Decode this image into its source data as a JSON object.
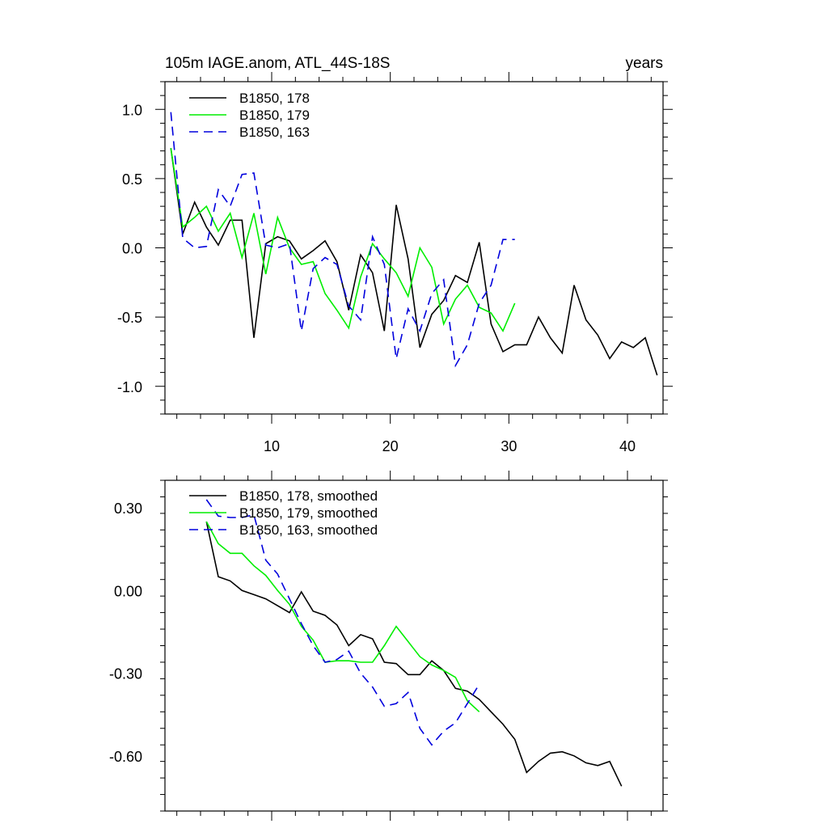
{
  "chart_data": [
    {
      "type": "line",
      "title": "105m IAGE.anom, ATL_44S-18S",
      "title_right": "years",
      "xlabel": "",
      "ylabel": "",
      "xlim": [
        1,
        43
      ],
      "ylim": [
        -1.2,
        1.2
      ],
      "xticks": [
        10,
        20,
        30,
        40
      ],
      "yticks": [
        1.0,
        0.5,
        0.0,
        -0.5,
        -1.0
      ],
      "ytick_labels": [
        "1.0",
        "0.5",
        "0.0",
        "-0.5",
        "-1.0"
      ],
      "xtick_labels": [
        "10",
        "20",
        "30",
        "40"
      ],
      "legend_position": "top-left",
      "series": [
        {
          "name": "B1850, 178",
          "color": "#000000",
          "dash": "solid",
          "x": [
            1.5,
            2.5,
            3.5,
            4.5,
            5.5,
            6.5,
            7.5,
            8.5,
            9.5,
            10.5,
            11.5,
            12.5,
            13.5,
            14.5,
            15.5,
            16.5,
            17.5,
            18.5,
            19.5,
            20.5,
            21.5,
            22.5,
            23.5,
            24.5,
            25.5,
            26.5,
            27.5,
            28.5,
            29.5,
            30.5,
            31.5,
            32.5,
            33.5,
            34.5,
            35.5,
            36.5,
            37.5,
            38.5,
            39.5,
            40.5,
            41.5,
            42.5
          ],
          "values": [
            0.72,
            0.1,
            0.33,
            0.15,
            0.02,
            0.2,
            0.2,
            -0.65,
            0.03,
            0.08,
            0.05,
            -0.08,
            -0.02,
            0.05,
            -0.1,
            -0.45,
            -0.05,
            -0.18,
            -0.6,
            0.31,
            -0.08,
            -0.72,
            -0.48,
            -0.38,
            -0.2,
            -0.25,
            0.04,
            -0.55,
            -0.75,
            -0.7,
            -0.7,
            -0.5,
            -0.65,
            -0.76,
            -0.27,
            -0.52,
            -0.63,
            -0.8,
            -0.68,
            -0.72,
            -0.65,
            -0.92
          ]
        },
        {
          "name": "B1850, 179",
          "color": "#00ee00",
          "dash": "solid",
          "x": [
            1.5,
            2.5,
            3.5,
            4.5,
            5.5,
            6.5,
            7.5,
            8.5,
            9.5,
            10.5,
            11.5,
            12.5,
            13.5,
            14.5,
            15.5,
            16.5,
            17.5,
            18.5,
            19.5,
            20.5,
            21.5,
            22.5,
            23.5,
            24.5,
            25.5,
            26.5,
            27.5,
            28.5,
            29.5,
            30.5
          ],
          "values": [
            0.72,
            0.15,
            0.22,
            0.3,
            0.12,
            0.25,
            -0.07,
            0.25,
            -0.19,
            0.22,
            0.0,
            -0.12,
            -0.1,
            -0.33,
            -0.45,
            -0.58,
            -0.21,
            0.03,
            -0.08,
            -0.18,
            -0.35,
            0.0,
            -0.14,
            -0.55,
            -0.37,
            -0.27,
            -0.43,
            -0.47,
            -0.6,
            -0.4
          ]
        },
        {
          "name": "B1850, 163",
          "color": "#0000dd",
          "dash": "dashed",
          "x": [
            1.5,
            2.5,
            3.5,
            4.5,
            5.5,
            6.5,
            7.5,
            8.5,
            9.5,
            10.5,
            11.5,
            12.5,
            13.5,
            14.5,
            15.5,
            16.5,
            17.5,
            18.5,
            19.5,
            20.5,
            21.5,
            22.5,
            23.5,
            24.5,
            25.5,
            26.5,
            27.5,
            28.5,
            29.5,
            30.5
          ],
          "values": [
            0.98,
            0.07,
            0.0,
            0.01,
            0.42,
            0.3,
            0.53,
            0.54,
            0.02,
            0.0,
            0.03,
            -0.6,
            -0.15,
            -0.07,
            -0.12,
            -0.42,
            -0.52,
            0.08,
            -0.12,
            -0.8,
            -0.44,
            -0.6,
            -0.33,
            -0.23,
            -0.85,
            -0.7,
            -0.4,
            -0.27,
            0.06,
            0.06
          ]
        }
      ]
    },
    {
      "type": "line",
      "title": "",
      "xlabel": "",
      "ylabel": "",
      "xlim": [
        1,
        43
      ],
      "ylim": [
        -0.8,
        0.4
      ],
      "xticks": [
        10,
        20,
        30,
        40
      ],
      "yticks": [
        0.3,
        0.0,
        -0.3,
        -0.6
      ],
      "ytick_labels": [
        "0.30",
        "0.00",
        "-0.30",
        "-0.60"
      ],
      "legend_position": "top-left",
      "series": [
        {
          "name": "B1850, 178, smoothed",
          "color": "#000000",
          "dash": "solid",
          "x": [
            4.5,
            5.5,
            6.5,
            7.5,
            8.5,
            9.5,
            10.5,
            11.5,
            12.5,
            13.5,
            14.5,
            15.5,
            16.5,
            17.5,
            18.5,
            19.5,
            20.5,
            21.5,
            22.5,
            23.5,
            24.5,
            25.5,
            26.5,
            27.5,
            28.5,
            29.5,
            30.5,
            31.5,
            32.5,
            33.5,
            34.5,
            35.5,
            36.5,
            37.5,
            38.5,
            39.5
          ],
          "values": [
            0.25,
            0.05,
            0.035,
            0.0,
            -0.015,
            -0.03,
            -0.055,
            -0.08,
            -0.005,
            -0.075,
            -0.09,
            -0.125,
            -0.2,
            -0.16,
            -0.175,
            -0.26,
            -0.265,
            -0.305,
            -0.305,
            -0.255,
            -0.29,
            -0.355,
            -0.365,
            -0.395,
            -0.44,
            -0.485,
            -0.54,
            -0.66,
            -0.62,
            -0.59,
            -0.585,
            -0.6,
            -0.625,
            -0.635,
            -0.62,
            -0.71
          ]
        },
        {
          "name": "B1850, 179, smoothed",
          "color": "#00ee00",
          "dash": "solid",
          "x": [
            4.5,
            5.5,
            6.5,
            7.5,
            8.5,
            9.5,
            10.5,
            11.5,
            12.5,
            13.5,
            14.5,
            15.5,
            16.5,
            17.5,
            18.5,
            19.5,
            20.5,
            21.5,
            22.5,
            23.5,
            24.5,
            25.5,
            26.5,
            27.5
          ],
          "values": [
            0.25,
            0.17,
            0.135,
            0.135,
            0.09,
            0.055,
            0.0,
            -0.05,
            -0.13,
            -0.18,
            -0.26,
            -0.255,
            -0.255,
            -0.26,
            -0.26,
            -0.2,
            -0.13,
            -0.185,
            -0.24,
            -0.27,
            -0.29,
            -0.315,
            -0.4,
            -0.44
          ]
        },
        {
          "name": "B1850, 163, smoothed",
          "color": "#0000dd",
          "dash": "dashed",
          "x": [
            4.5,
            5.5,
            6.5,
            7.5,
            8.5,
            9.5,
            10.5,
            11.5,
            12.5,
            13.5,
            14.5,
            15.5,
            16.5,
            17.5,
            18.5,
            19.5,
            20.5,
            21.5,
            22.5,
            23.5,
            24.5,
            25.5,
            26.5,
            27.5
          ],
          "values": [
            0.33,
            0.27,
            0.265,
            0.265,
            0.275,
            0.11,
            0.06,
            -0.03,
            -0.12,
            -0.2,
            -0.26,
            -0.25,
            -0.22,
            -0.3,
            -0.35,
            -0.42,
            -0.41,
            -0.37,
            -0.5,
            -0.56,
            -0.51,
            -0.48,
            -0.41,
            -0.34
          ]
        }
      ]
    }
  ]
}
